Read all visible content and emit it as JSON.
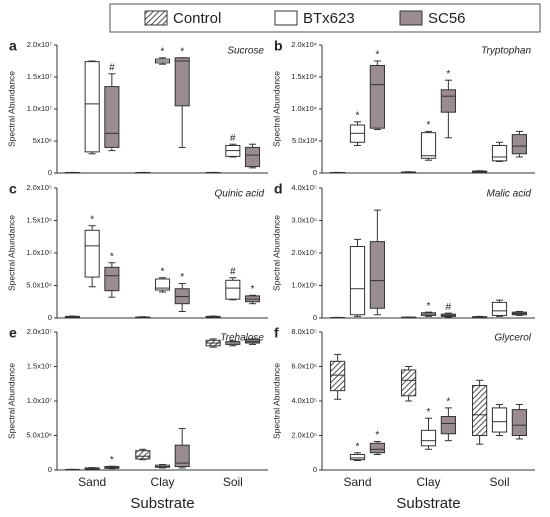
{
  "chart_data": {
    "type": "box",
    "categories": [
      "Sand",
      "Clay",
      "Soil"
    ],
    "xlabel": "Substrate",
    "ylabel": "Spectral Abundance",
    "series": [
      {
        "name": "Control",
        "color": "#ffffff",
        "hatch": true
      },
      {
        "name": "BTx623",
        "color": "#ffffff",
        "hatch": false
      },
      {
        "name": "SC56",
        "color": "#9a8c90",
        "hatch": false
      }
    ],
    "panels": [
      {
        "letter": "a",
        "title": "Sucrose",
        "ylim": [
          0,
          20000000
        ],
        "yticks": [
          0,
          {
            "value": 5000000,
            "label": "5x10⁶"
          },
          {
            "value": 10000000,
            "label": "1.0x10⁷"
          },
          {
            "value": 15000000,
            "label": "1.5x10⁷"
          },
          {
            "value": 20000000,
            "label": "2.0x10⁷"
          }
        ],
        "boxes": [
          [
            {
              "min": 0,
              "q1": 20000,
              "median": 50000,
              "q3": 80000,
              "max": 100000
            },
            {
              "min": 0,
              "q1": 20000,
              "median": 50000,
              "q3": 80000,
              "max": 100000
            },
            {
              "min": 0,
              "q1": 20000,
              "median": 50000,
              "q3": 80000,
              "max": 100000
            }
          ],
          [
            {
              "min": 3000000,
              "q1": 3300000,
              "median": 10800000,
              "q3": 17400000,
              "max": 17500000
            },
            {
              "min": 17000000,
              "q1": 17200000,
              "median": 17500000,
              "q3": 17800000,
              "max": 18000000
            },
            {
              "min": 2500000,
              "q1": 2600000,
              "median": 3500000,
              "q3": 4300000,
              "max": 4500000
            }
          ],
          [
            {
              "min": 3500000,
              "q1": 4000000,
              "median": 6200000,
              "q3": 13500000,
              "max": 15500000
            },
            {
              "min": 4000000,
              "q1": 10500000,
              "median": 17500000,
              "q3": 18000000,
              "max": 18000000
            },
            {
              "min": 800000,
              "q1": 1000000,
              "median": 2800000,
              "q3": 4000000,
              "max": 4500000
            }
          ]
        ],
        "annotations": [
          [
            null,
            null,
            null
          ],
          [
            null,
            "*",
            "#"
          ],
          [
            "#",
            "*",
            null
          ]
        ]
      },
      {
        "letter": "b",
        "title": "Tryptophan",
        "ylim": [
          0,
          20000
        ],
        "yticks": [
          0,
          {
            "value": 5000,
            "label": "5.0x10³"
          },
          {
            "value": 10000,
            "label": "1.0x10⁴"
          },
          {
            "value": 15000,
            "label": "1.5x10⁴"
          },
          {
            "value": 20000,
            "label": "2.0x10⁴"
          }
        ],
        "boxes": [
          [
            {
              "min": 0,
              "q1": 20,
              "median": 50,
              "q3": 80,
              "max": 100
            },
            {
              "min": 20,
              "q1": 50,
              "median": 100,
              "q3": 150,
              "max": 200
            },
            {
              "min": 100,
              "q1": 150,
              "median": 250,
              "q3": 300,
              "max": 350
            }
          ],
          [
            {
              "min": 4300,
              "q1": 4800,
              "median": 6200,
              "q3": 7500,
              "max": 8000
            },
            {
              "min": 2000,
              "q1": 2300,
              "median": 2700,
              "q3": 6300,
              "max": 6500
            },
            {
              "min": 1800,
              "q1": 1900,
              "median": 2500,
              "q3": 4300,
              "max": 4800
            }
          ],
          [
            {
              "min": 6800,
              "q1": 7000,
              "median": 13800,
              "q3": 16800,
              "max": 17500
            },
            {
              "min": 5500,
              "q1": 9500,
              "median": 12000,
              "q3": 13000,
              "max": 14500
            },
            {
              "min": 2500,
              "q1": 3000,
              "median": 4200,
              "q3": 6000,
              "max": 6500
            }
          ]
        ],
        "annotations": [
          [
            null,
            null,
            null
          ],
          [
            "*",
            "*",
            null
          ],
          [
            "*",
            "*",
            null
          ]
        ]
      },
      {
        "letter": "c",
        "title": "Quinic acid",
        "ylim": [
          0,
          200000
        ],
        "yticks": [
          0,
          {
            "value": 50000,
            "label": "5.0x10⁴"
          },
          {
            "value": 100000,
            "label": "1.0x10⁵"
          },
          {
            "value": 150000,
            "label": "1.5x10⁵"
          },
          {
            "value": 200000,
            "label": "2.0x10⁵"
          }
        ],
        "boxes": [
          [
            {
              "min": 1000,
              "q1": 1500,
              "median": 2000,
              "q3": 2500,
              "max": 3000
            },
            {
              "min": 500,
              "q1": 800,
              "median": 1000,
              "q3": 1500,
              "max": 2000
            },
            {
              "min": 1000,
              "q1": 1500,
              "median": 2000,
              "q3": 2500,
              "max": 3000
            }
          ],
          [
            {
              "min": 48000,
              "q1": 63000,
              "median": 111000,
              "q3": 135000,
              "max": 142000
            },
            {
              "min": 40000,
              "q1": 43000,
              "median": 46000,
              "q3": 60000,
              "max": 62000
            },
            {
              "min": 28000,
              "q1": 29000,
              "median": 46000,
              "q3": 58000,
              "max": 62000
            }
          ],
          [
            {
              "min": 32000,
              "q1": 42000,
              "median": 65000,
              "q3": 78000,
              "max": 85000
            },
            {
              "min": 10000,
              "q1": 22000,
              "median": 33000,
              "q3": 45000,
              "max": 53000
            },
            {
              "min": 22000,
              "q1": 25000,
              "median": 29000,
              "q3": 34000,
              "max": 35000
            }
          ]
        ],
        "annotations": [
          [
            null,
            null,
            null
          ],
          [
            "*",
            "*",
            "#"
          ],
          [
            "*",
            "*",
            "*"
          ]
        ]
      },
      {
        "letter": "d",
        "title": "Malic acid",
        "ylim": [
          0,
          400000
        ],
        "yticks": [
          0,
          {
            "value": 100000,
            "label": "1.0x10⁵"
          },
          {
            "value": 200000,
            "label": "2.0x10⁵"
          },
          {
            "value": 300000,
            "label": "3.0x10⁵"
          },
          {
            "value": 400000,
            "label": "4.0x10⁵"
          }
        ],
        "boxes": [
          [
            {
              "min": 0,
              "q1": 500,
              "median": 1000,
              "q3": 1500,
              "max": 2000
            },
            {
              "min": 1000,
              "q1": 1500,
              "median": 2000,
              "q3": 2500,
              "max": 3000
            },
            {
              "min": 1000,
              "q1": 2000,
              "median": 3000,
              "q3": 4000,
              "max": 5000
            }
          ],
          [
            {
              "min": 5000,
              "q1": 10000,
              "median": 90000,
              "q3": 220000,
              "max": 242000
            },
            {
              "min": 5000,
              "q1": 8000,
              "median": 12000,
              "q3": 16000,
              "max": 18000
            },
            {
              "min": 5000,
              "q1": 8000,
              "median": 22000,
              "q3": 48000,
              "max": 55000
            }
          ],
          [
            {
              "min": 10000,
              "q1": 30000,
              "median": 115000,
              "q3": 235000,
              "max": 332000
            },
            {
              "min": 3000,
              "q1": 5000,
              "median": 8000,
              "q3": 12000,
              "max": 15000
            },
            {
              "min": 8000,
              "q1": 10000,
              "median": 14000,
              "q3": 18000,
              "max": 20000
            }
          ]
        ],
        "annotations": [
          [
            null,
            null,
            null
          ],
          [
            null,
            "*",
            null
          ],
          [
            null,
            "#",
            null
          ]
        ]
      },
      {
        "letter": "e",
        "title": "Trehalose",
        "ylim": [
          0,
          20000000
        ],
        "yticks": [
          0,
          {
            "value": 5000000,
            "label": "5.0x10⁶"
          },
          {
            "value": 10000000,
            "label": "1.0x10⁷"
          },
          {
            "value": 15000000,
            "label": "1.5x10⁷"
          },
          {
            "value": 20000000,
            "label": "2.0x10⁷"
          }
        ],
        "boxes": [
          [
            {
              "min": 0,
              "q1": 20000,
              "median": 50000,
              "q3": 80000,
              "max": 100000
            },
            {
              "min": 1500000,
              "q1": 1600000,
              "median": 2000000,
              "q3": 2800000,
              "max": 3000000
            },
            {
              "min": 17800000,
              "q1": 18000000,
              "median": 18400000,
              "q3": 18800000,
              "max": 19000000
            }
          ],
          [
            {
              "min": 0,
              "q1": 100000,
              "median": 200000,
              "q3": 300000,
              "max": 350000
            },
            {
              "min": 300000,
              "q1": 400000,
              "median": 500000,
              "q3": 700000,
              "max": 800000
            },
            {
              "min": 18000000,
              "q1": 18200000,
              "median": 18400000,
              "q3": 18600000,
              "max": 18700000
            }
          ],
          [
            {
              "min": 200000,
              "q1": 250000,
              "median": 350000,
              "q3": 500000,
              "max": 550000
            },
            {
              "min": 300000,
              "q1": 500000,
              "median": 1000000,
              "q3": 3600000,
              "max": 6000000
            },
            {
              "min": 18200000,
              "q1": 18400000,
              "median": 18600000,
              "q3": 18900000,
              "max": 19000000
            }
          ]
        ],
        "annotations": [
          [
            null,
            null,
            null
          ],
          [
            null,
            null,
            null
          ],
          [
            "*",
            null,
            null
          ]
        ]
      },
      {
        "letter": "f",
        "title": "Glycerol",
        "ylim": [
          0,
          800000
        ],
        "yticks": [
          0,
          {
            "value": 200000,
            "label": "2.0x10⁵"
          },
          {
            "value": 400000,
            "label": "4.0x10⁵"
          },
          {
            "value": 600000,
            "label": "6.0x10⁵"
          },
          {
            "value": 800000,
            "label": "8.0x10⁵"
          }
        ],
        "boxes": [
          [
            {
              "min": 410000,
              "q1": 460000,
              "median": 550000,
              "q3": 630000,
              "max": 670000
            },
            {
              "min": 400000,
              "q1": 430000,
              "median": 520000,
              "q3": 580000,
              "max": 600000
            },
            {
              "min": 150000,
              "q1": 200000,
              "median": 320000,
              "q3": 490000,
              "max": 520000
            }
          ],
          [
            {
              "min": 55000,
              "q1": 60000,
              "median": 70000,
              "q3": 90000,
              "max": 100000
            },
            {
              "min": 120000,
              "q1": 140000,
              "median": 170000,
              "q3": 230000,
              "max": 300000
            },
            {
              "min": 200000,
              "q1": 220000,
              "median": 280000,
              "q3": 360000,
              "max": 380000
            }
          ],
          [
            {
              "min": 90000,
              "q1": 100000,
              "median": 120000,
              "q3": 155000,
              "max": 165000
            },
            {
              "min": 170000,
              "q1": 210000,
              "median": 270000,
              "q3": 310000,
              "max": 360000
            },
            {
              "min": 180000,
              "q1": 200000,
              "median": 260000,
              "q3": 350000,
              "max": 380000
            }
          ]
        ],
        "annotations": [
          [
            null,
            null,
            null
          ],
          [
            "*",
            "*",
            null
          ],
          [
            "*",
            "*",
            null
          ]
        ]
      }
    ]
  }
}
